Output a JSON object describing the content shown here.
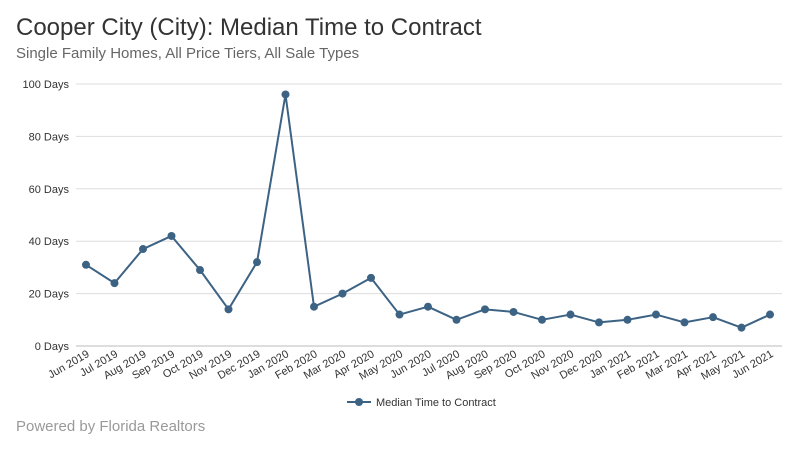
{
  "header": {
    "title": "Cooper City (City): Median Time to Contract",
    "subtitle": "Single Family Homes, All Price Tiers, All Sale Types"
  },
  "footer": {
    "text": "Powered by Florida Realtors"
  },
  "chart_data": {
    "type": "line",
    "title": "Cooper City (City): Median Time to Contract",
    "subtitle": "Single Family Homes, All Price Tiers, All Sale Types",
    "xlabel": "",
    "ylabel": "",
    "ylim": [
      0,
      100
    ],
    "y_ticks": [
      "0 Days",
      "20 Days",
      "40 Days",
      "60 Days",
      "80 Days",
      "100 Days"
    ],
    "y_tick_values": [
      0,
      20,
      40,
      60,
      80,
      100
    ],
    "grid": true,
    "legend_position": "bottom",
    "color": "#3d6384",
    "categories": [
      "Jun 2019",
      "Jul 2019",
      "Aug 2019",
      "Sep 2019",
      "Oct 2019",
      "Nov 2019",
      "Dec 2019",
      "Jan 2020",
      "Feb 2020",
      "Mar 2020",
      "Apr 2020",
      "May 2020",
      "Jun 2020",
      "Jul 2020",
      "Aug 2020",
      "Sep 2020",
      "Oct 2020",
      "Nov 2020",
      "Dec 2020",
      "Jan 2021",
      "Feb 2021",
      "Mar 2021",
      "Apr 2021",
      "May 2021",
      "Jun 2021"
    ],
    "series": [
      {
        "name": "Median Time to Contract",
        "values": [
          31,
          24,
          37,
          42,
          29,
          14,
          32,
          96,
          15,
          20,
          26,
          12,
          15,
          10,
          14,
          13,
          10,
          12,
          9,
          10,
          12,
          9,
          11,
          7,
          12
        ]
      }
    ]
  }
}
